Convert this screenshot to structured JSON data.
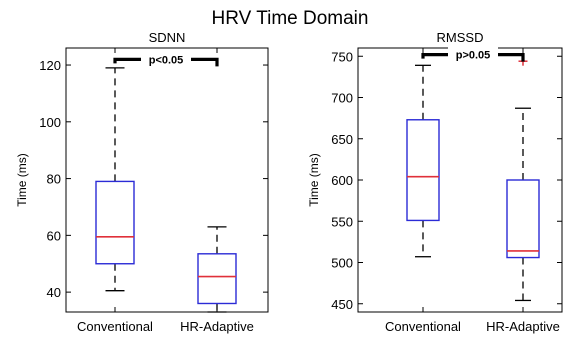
{
  "figure": {
    "title": "HRV Time Domain"
  },
  "chart_data": [
    {
      "type": "box",
      "title": "SDNN",
      "ylabel": "Time (ms)",
      "xlabel": "",
      "categories": [
        "Conventional",
        "HR-Adaptive"
      ],
      "ylim": [
        33,
        126
      ],
      "yticks": [
        40,
        60,
        80,
        100,
        120
      ],
      "boxes": [
        {
          "category": "Conventional",
          "whisker_low": 40.5,
          "q1": 50,
          "median": 59.5,
          "q3": 79,
          "whisker_high": 119,
          "outliers": []
        },
        {
          "category": "HR-Adaptive",
          "whisker_low": 33,
          "q1": 36,
          "median": 45.5,
          "q3": 53.5,
          "whisker_high": 63,
          "outliers": []
        }
      ],
      "significance": {
        "label": "p<0.05",
        "y": 122
      },
      "colors": {
        "box": "#2b2bd6",
        "median": "#e0303a",
        "whisker": "#000000",
        "outlier": "#e0303a"
      }
    },
    {
      "type": "box",
      "title": "RMSSD",
      "ylabel": "Time (ms)",
      "xlabel": "",
      "categories": [
        "Conventional",
        "HR-Adaptive"
      ],
      "ylim": [
        440,
        760
      ],
      "yticks": [
        450,
        500,
        550,
        600,
        650,
        700,
        750
      ],
      "boxes": [
        {
          "category": "Conventional",
          "whisker_low": 507,
          "q1": 551,
          "median": 604,
          "q3": 673,
          "whisker_high": 739,
          "outliers": []
        },
        {
          "category": "HR-Adaptive",
          "whisker_low": 454,
          "q1": 506,
          "median": 514,
          "q3": 600,
          "whisker_high": 687,
          "outliers": [
            744
          ]
        }
      ],
      "significance": {
        "label": "p>0.05",
        "y": 752
      },
      "colors": {
        "box": "#2b2bd6",
        "median": "#e0303a",
        "whisker": "#000000",
        "outlier": "#e0303a"
      }
    }
  ]
}
